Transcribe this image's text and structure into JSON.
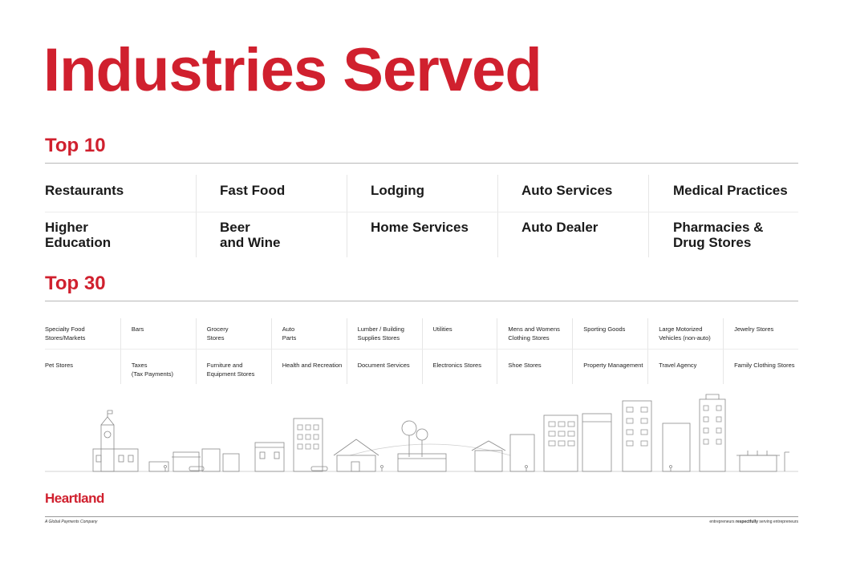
{
  "title": "Industries Served",
  "top10": {
    "heading": "Top 10",
    "items": [
      "Restaurants",
      "Fast Food",
      "Lodging",
      "Auto Services",
      "Medical Practices",
      "Higher\nEducation",
      "Beer\nand Wine",
      "Home Services",
      "Auto Dealer",
      "Pharmacies &\nDrug Stores"
    ]
  },
  "top30": {
    "heading": "Top 30",
    "items": [
      "Specialty Food\nStores/Markets",
      "Bars",
      "Grocery\nStores",
      "Auto\nParts",
      "Lumber / Building\nSupplies Stores",
      "Utilities",
      "Mens and Womens\nClothing Stores",
      "Sporting Goods",
      "Large Motorized\nVehicles (non-auto)",
      "Jewelry Stores",
      "Pet Stores",
      "Taxes\n(Tax Payments)",
      "Furniture and\nEquipment Stores",
      "Health and Recreation",
      "Document Services",
      "Electronics Stores",
      "Shoe Stores",
      "Property Management",
      "Travel Agency",
      "Family Clothing Stores"
    ]
  },
  "brand": {
    "logo_text": "Heartland",
    "company_line": "A Global Payments Company",
    "tagline_pre": "entrepreneurs ",
    "tagline_bold": "respectfully",
    "tagline_post": " serving entrepreneurs"
  },
  "colors": {
    "accent": "#d0202e",
    "text": "#1a1a1a",
    "rule": "#b8b8b8",
    "line_art": "#8a8a8a"
  },
  "illustration": {
    "subject": "town-skyline-line-art"
  }
}
